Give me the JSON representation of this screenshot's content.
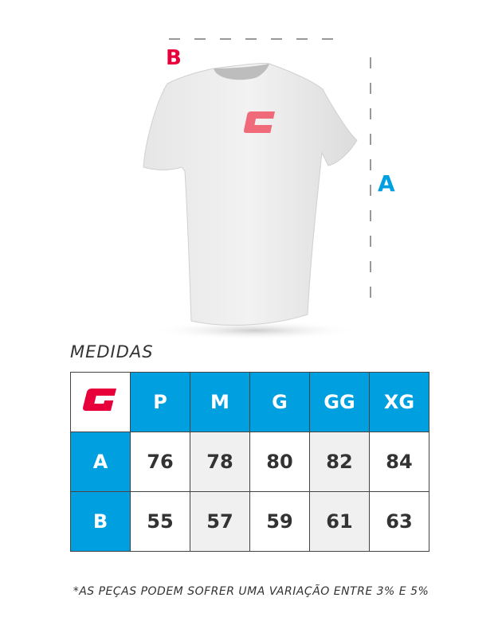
{
  "diagram": {
    "label_b": "B",
    "label_a": "A"
  },
  "title": "MEDIDAS",
  "table": {
    "sizes": [
      "P",
      "M",
      "G",
      "GG",
      "XG"
    ],
    "rows": [
      {
        "label": "A",
        "values": [
          "76",
          "78",
          "80",
          "82",
          "84"
        ]
      },
      {
        "label": "B",
        "values": [
          "55",
          "57",
          "59",
          "61",
          "63"
        ]
      }
    ]
  },
  "note": "*AS PEÇAS PODEM SOFRER UMA VARIAÇÃO ENTRE 3% E 5%",
  "colors": {
    "accent_blue": "#009fe0",
    "brand_red": "#e8003a",
    "logo_pink": "#f06a7a"
  },
  "icons": {
    "brand": "g-logo-icon"
  }
}
